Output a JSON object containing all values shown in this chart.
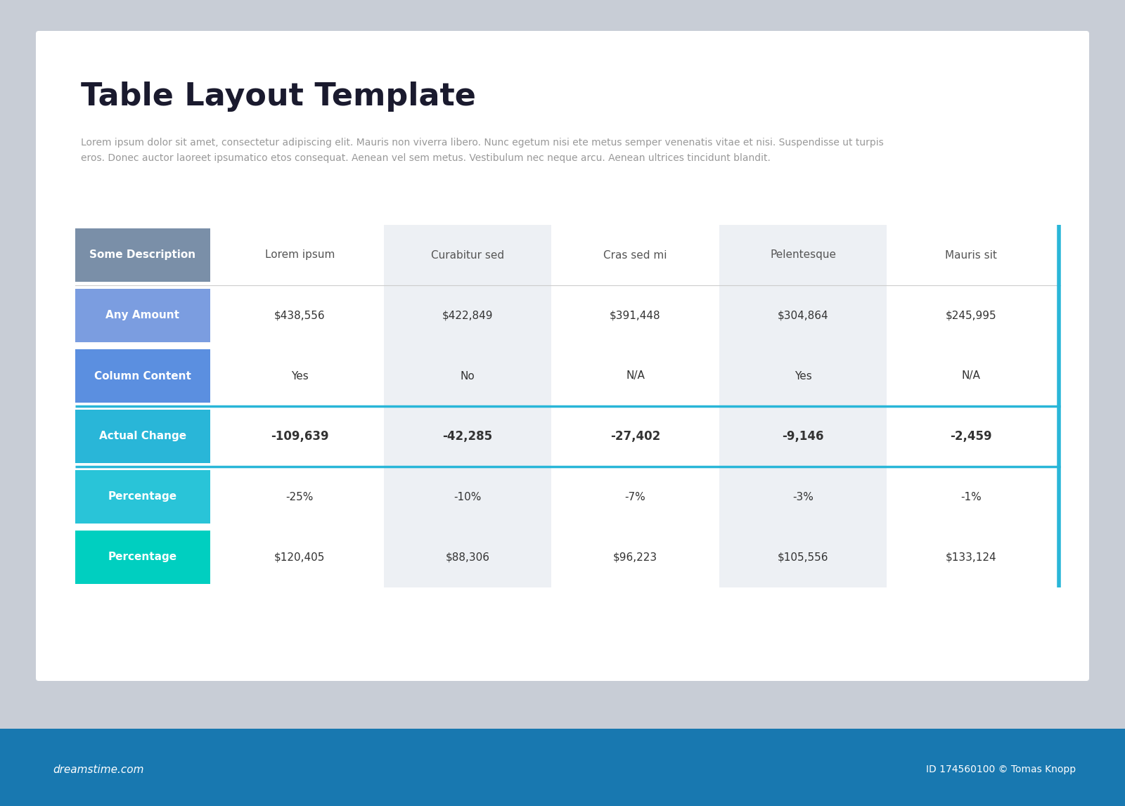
{
  "title": "Table Layout Template",
  "subtitle": "Lorem ipsum dolor sit amet, consectetur adipiscing elit. Mauris non viverra libero. Nunc egetum nisi ete metus semper venenatis vitae et nisi. Suspendisse ut turpis\neros. Donec auctor laoreet ipsumatico etos consequat. Aenean vel sem metus. Vestibulum nec neque arcu. Aenean ultrices tincidunt blandit.",
  "bg_outer": "#c8cdd6",
  "bg_inner": "#ffffff",
  "footer_color": "#1878b0",
  "col_headers": [
    "Some Description",
    "Lorem ipsum",
    "Curabitur sed",
    "Cras sed mi",
    "Pelentesque",
    "Mauris sit"
  ],
  "rows": [
    {
      "label": "Any Amount",
      "label_color": "#7b9de0",
      "values": [
        "$438,556",
        "$422,849",
        "$391,448",
        "$304,864",
        "$245,995"
      ],
      "bold": false,
      "highlight": false
    },
    {
      "label": "Column Content",
      "label_color": "#5b8fe0",
      "values": [
        "Yes",
        "No",
        "N/A",
        "Yes",
        "N/A"
      ],
      "bold": false,
      "highlight": false
    },
    {
      "label": "Actual Change",
      "label_color": "#29b6d8",
      "values": [
        "-109,639",
        "-42,285",
        "-27,402",
        "-9,146",
        "-2,459"
      ],
      "bold": true,
      "highlight": true
    },
    {
      "label": "Percentage",
      "label_color": "#29c4d8",
      "values": [
        "-25%",
        "-10%",
        "-7%",
        "-3%",
        "-1%"
      ],
      "bold": false,
      "highlight": false
    },
    {
      "label": "Percentage",
      "label_color": "#00cfc0",
      "values": [
        "$120,405",
        "$88,306",
        "$96,223",
        "$105,556",
        "$133,124"
      ],
      "bold": false,
      "highlight": false
    }
  ],
  "header_label_color": "#7a8fa8",
  "header_text_color": "#555555",
  "cell_alt_color": "#edf0f4",
  "label_text_color": "#ffffff",
  "data_text_color": "#333333",
  "right_bar_color": "#29b6d8",
  "highlight_border_color": "#29b6d8",
  "title_color": "#1a1a2e",
  "subtitle_color": "#999999",
  "footer_dreamstime": "dreamstime.com",
  "footer_id": "ID 174560100 © Tomas Knopp"
}
